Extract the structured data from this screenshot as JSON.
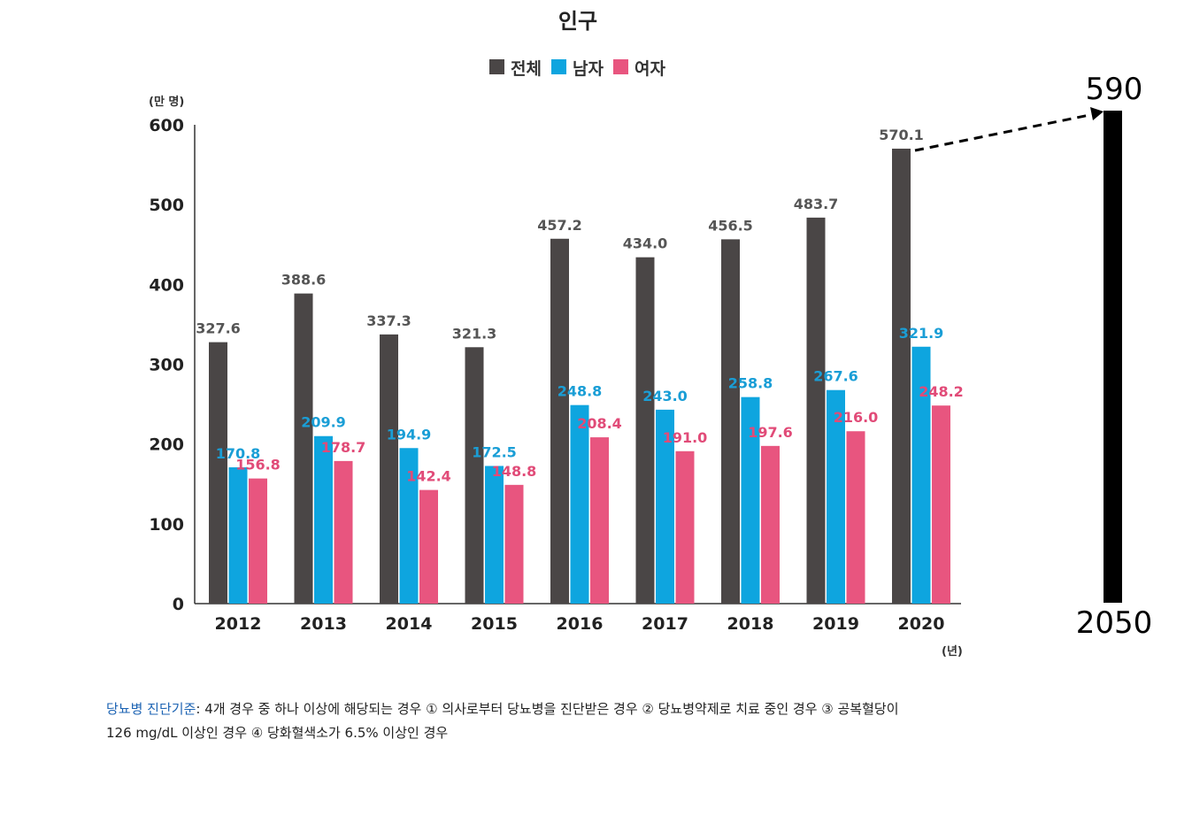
{
  "chart_data": {
    "type": "bar",
    "title": "인구",
    "y_unit_label": "(만 명)",
    "x_unit_label": "(년)",
    "ylim": [
      0,
      600
    ],
    "yticks": [
      "0",
      "100",
      "200",
      "300",
      "400",
      "500",
      "600"
    ],
    "categories": [
      "2012",
      "2013",
      "2014",
      "2015",
      "2016",
      "2017",
      "2018",
      "2019",
      "2020"
    ],
    "series": [
      {
        "name": "전체",
        "color": "#4a4646",
        "label_color": "#555555",
        "values": [
          327.6,
          388.6,
          337.3,
          321.3,
          457.2,
          434.0,
          456.5,
          483.7,
          570.1
        ],
        "labels": [
          "327.6",
          "388.6",
          "337.3",
          "321.3",
          "457.2",
          "434.0",
          "456.5",
          "483.7",
          "570.1"
        ]
      },
      {
        "name": "남자",
        "color": "#0ea5df",
        "label_color": "#1a9ed6",
        "values": [
          170.8,
          209.9,
          194.9,
          172.5,
          248.8,
          243.0,
          258.8,
          267.6,
          321.9
        ],
        "labels": [
          "170.8",
          "209.9",
          "194.9",
          "172.5",
          "248.8",
          "243.0",
          "258.8",
          "267.6",
          "321.9"
        ]
      },
      {
        "name": "여자",
        "color": "#e8557f",
        "label_color": "#e14b78",
        "values": [
          156.8,
          178.7,
          142.4,
          148.8,
          208.4,
          191.0,
          197.6,
          216.0,
          248.2
        ],
        "labels": [
          "156.8",
          "178.7",
          "142.4",
          "148.8",
          "208.4",
          "191.0",
          "197.6",
          "216.0",
          "248.2"
        ]
      }
    ],
    "projection": {
      "year": "2050",
      "value": 590,
      "value_label": "590"
    }
  },
  "footnote": {
    "key": "당뇨병 진단기준",
    "line1": ": 4개 경우 중 하나 이상에 해당되는 경우 ① 의사로부터 당뇨병을 진단받은 경우 ② 당뇨병약제로 치료 중인 경우 ③ 공복혈당이",
    "line2": "126 mg/dL 이상인 경우 ④ 당화혈색소가 6.5% 이상인 경우"
  }
}
